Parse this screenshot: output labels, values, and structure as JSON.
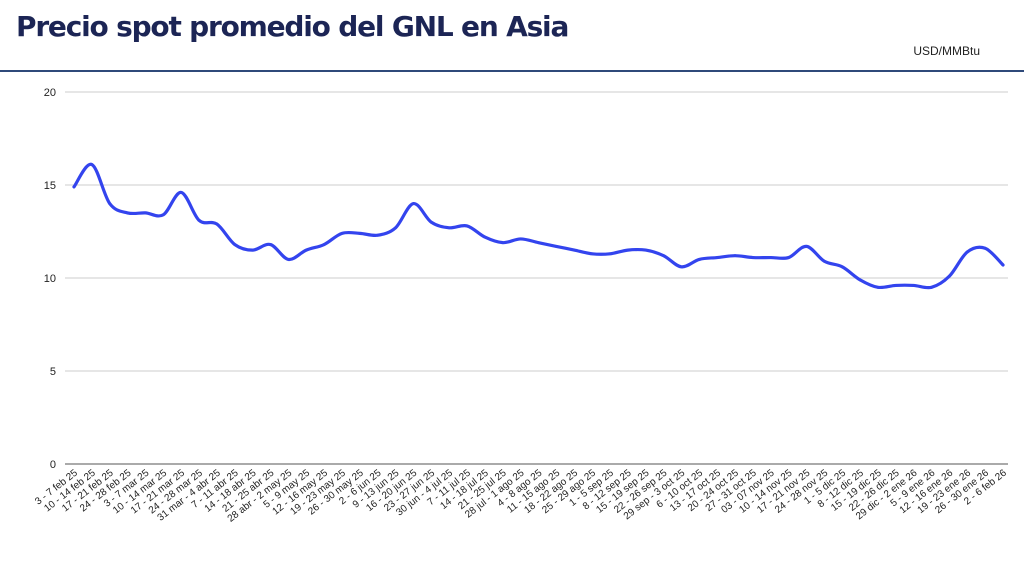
{
  "header": {
    "title": "Precio spot promedio del GNL en Asia",
    "unit": "USD/MMBtu"
  },
  "colors": {
    "line": "#3344ee",
    "grid": "#cccccc",
    "title": "#1c2555",
    "rule": "#2f4a7a"
  },
  "chart_data": {
    "type": "line",
    "title": "Precio spot promedio del GNL en Asia",
    "ylabel": "USD/MMBtu",
    "xlabel": "",
    "ylim": [
      0,
      20
    ],
    "yticks": [
      0,
      5,
      10,
      15,
      20
    ],
    "grid": true,
    "legend": "none",
    "categories": [
      "3 - 7 feb 25",
      "10 - 14 feb 25",
      "17 - 21 feb 25",
      "24 - 28 feb 25",
      "3 - 7 mar 25",
      "10 - 14 mar 25",
      "17 - 21 mar 25",
      "24 - 28 mar 25",
      "31 mar - 4 abr 25",
      "7 - 11 abr 25",
      "14 - 18 abr 25",
      "21 - 25 abr 25",
      "28 abr - 2 may 25",
      "5 - 9 may 25",
      "12 - 16 may 25",
      "19 - 23 may 25",
      "26 - 30 may 25",
      "2 - 6 jun 25",
      "9 - 13 jun 25",
      "16 - 20 jun 25",
      "23 - 27 jun 25",
      "30 jun - 4 jul 25",
      "7 - 11 jul 25",
      "14 - 18 jul 25",
      "21 - 25 jul 25",
      "28 jul - 1 ago 25",
      "4 - 8 ago 25",
      "11 - 15 ago 25",
      "18 - 22 ago 25",
      "25 - 29 ago 25",
      "1 - 5 sep 25",
      "8 - 12 sep 25",
      "15 - 19 sep 25",
      "22 - 26 sep 25",
      "29 sep - 3 oct 25",
      "6 - 10 oct 25",
      "13 - 17 oct 25",
      "20 - 24 oct 25",
      "27 - 31 oct 25",
      "03 - 07 nov 25",
      "10 - 14 nov 25",
      "17 - 21 nov 25",
      "24 - 28 nov 25",
      "1 - 5 dic 25",
      "8 - 12 dic 25",
      "15 - 19 dic 25",
      "22 - 26 dic 25",
      "29 dic - 2 ene 26",
      "5 - 9 ene 26",
      "12 - 16 ene 26",
      "19 - 23 ene 26",
      "26 - 30 ene 26",
      "2 - 6 feb 26"
    ],
    "series": [
      {
        "values": [
          14.9,
          16.1,
          14.0,
          13.5,
          13.5,
          13.4,
          14.6,
          13.1,
          12.9,
          11.8,
          11.5,
          11.8,
          11.0,
          11.5,
          11.8,
          12.4,
          12.4,
          12.3,
          12.7,
          14.0,
          13.0,
          12.7,
          12.8,
          12.2,
          11.9,
          12.1,
          11.9,
          11.7,
          11.5,
          11.3,
          11.3,
          11.5,
          11.5,
          11.2,
          10.6,
          11.0,
          11.1,
          11.2,
          11.1,
          11.1,
          11.1,
          11.7,
          10.9,
          10.6,
          9.9,
          9.5,
          9.6,
          9.6,
          9.5,
          10.1,
          11.4,
          11.6,
          10.7
        ]
      }
    ]
  }
}
